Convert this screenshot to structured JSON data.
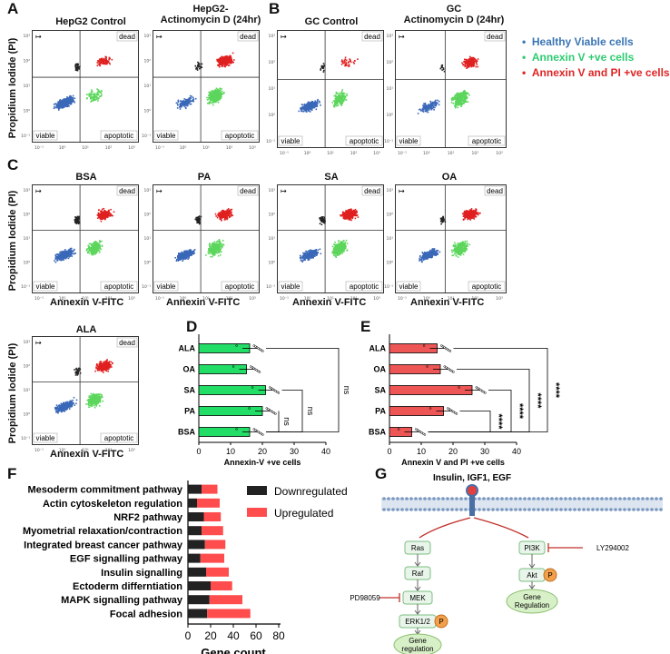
{
  "panels": {
    "A": {
      "letter": "A",
      "titles": [
        "HepG2 Control",
        "HepG2-\nActinomycin D (24hr)"
      ]
    },
    "B": {
      "letter": "B",
      "titles": [
        "GC Control",
        "GC\nActinomycin D (24hr)"
      ]
    },
    "C": {
      "letter": "C",
      "titles": [
        "BSA",
        "PA",
        "SA",
        "OA",
        "ALA"
      ]
    },
    "D": {
      "letter": "D"
    },
    "E": {
      "letter": "E"
    },
    "F": {
      "letter": "F"
    },
    "G": {
      "letter": "G"
    }
  },
  "flow": {
    "quadrant_labels": {
      "dead": "dead",
      "viable": "viable",
      "apoptotic": "apoptotic"
    },
    "ylabel": "Propidium Iodide (PI)",
    "xlabel": "Annexin V-FITC",
    "tick_labels": [
      "10⁻¹",
      "10⁰",
      "10¹",
      "10²",
      "10³"
    ],
    "corner_symbol": "↦",
    "colors": {
      "viable": "#3a68b8",
      "annexin": "#5cd65c",
      "dead": "#e02020",
      "black": "#222222"
    }
  },
  "legend": {
    "items": [
      {
        "label": "Healthy Viable cells",
        "color": "#3a75b5"
      },
      {
        "label": "Annexin V +ve cells",
        "color": "#2ecc71"
      },
      {
        "label": "Annexin V and PI +ve cells",
        "color": "#e02424"
      }
    ]
  },
  "chart_data": [
    {
      "id": "D",
      "type": "bar",
      "orientation": "horizontal",
      "categories": [
        "ALA",
        "OA",
        "SA",
        "PA",
        "BSA"
      ],
      "values": [
        16,
        15,
        21,
        20,
        16
      ],
      "xlabel": "Annexin-V +ve cells",
      "xlim": [
        0,
        40
      ],
      "xticks": [
        "0",
        "10",
        "20",
        "30",
        "40"
      ],
      "bar_color": "#22dd66",
      "significance": [
        "ns",
        "ns",
        "ns"
      ]
    },
    {
      "id": "E",
      "type": "bar",
      "orientation": "horizontal",
      "categories": [
        "ALA",
        "OA",
        "SA",
        "PA",
        "BSA"
      ],
      "values": [
        15,
        16,
        26,
        17,
        7
      ],
      "xlabel": "Annexin V and PI +ve cells",
      "xlim": [
        0,
        40
      ],
      "xticks": [
        "0",
        "10",
        "20",
        "30",
        "40"
      ],
      "bar_color": "#ee5555",
      "significance": [
        "****",
        "****",
        "****",
        "****"
      ]
    },
    {
      "id": "F",
      "type": "bar",
      "orientation": "horizontal",
      "stacked": true,
      "categories": [
        "Mesoderm commitment pathway",
        "Actin cytoskeleton regulation",
        "NRF2 pathway",
        "Myometrial relaxation/contraction",
        "Integrated breast cancer pathway",
        "EGF signalling pathway",
        "Insulin signalling",
        "Ectoderm differntiation",
        "MAPK signalling pathway",
        "Focal adhesion"
      ],
      "series": [
        {
          "name": "Downregulated",
          "color": "#222222",
          "values": [
            12,
            8,
            14,
            12,
            15,
            11,
            16,
            20,
            19,
            17
          ]
        },
        {
          "name": "Upregulated",
          "color": "#ff4d4d",
          "values": [
            14,
            20,
            15,
            19,
            18,
            21,
            20,
            19,
            29,
            38
          ]
        }
      ],
      "xlabel": "Gene count",
      "xlim": [
        0,
        80
      ],
      "xticks": [
        "0",
        "20",
        "40",
        "60",
        "80"
      ]
    }
  ],
  "pathway": {
    "top_label": "Insulin, IGF1, EGF",
    "nodes": {
      "ras": "Ras",
      "raf": "Raf",
      "mek": "MEK",
      "erk": "ERK1/2",
      "pi3k": "PI3K",
      "akt": "Akt",
      "p": "P",
      "gene_reg_left": "Gene\nregulation",
      "gene_reg_right": "Gene\nRegulation"
    },
    "inhibitors": {
      "ly": "LY294002",
      "pd": "PD98059"
    }
  }
}
